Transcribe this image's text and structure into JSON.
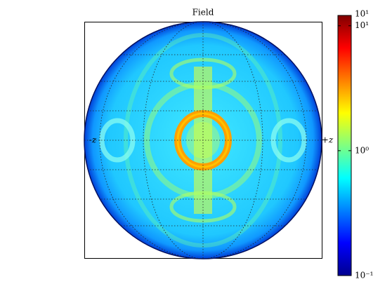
{
  "chart_data": {
    "type": "heatmap",
    "title": "Field",
    "left_label": "-z",
    "right_label": "+z",
    "colorbar": {
      "scale": "log",
      "clim": [
        0.1,
        12.1
      ],
      "ticks": [
        {
          "value": 0.1,
          "label": "10⁻¹"
        },
        {
          "value": 1,
          "label": "10⁰"
        },
        {
          "value": 10,
          "label": "10¹"
        }
      ],
      "top_label": "10¹",
      "colormap": [
        "#00008f",
        "#0000ff",
        "#0080ff",
        "#00ffff",
        "#80ff80",
        "#ffff00",
        "#ff8000",
        "#ff0000",
        "#800000"
      ]
    }
  }
}
